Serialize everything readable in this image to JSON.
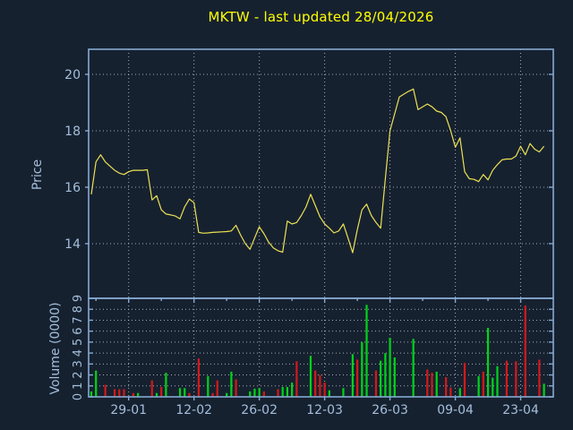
{
  "header": {
    "title": "MKTW - last updated 28/04/2026"
  },
  "colors": {
    "background": "#162130",
    "frame": "#86aad2",
    "tick_text": "#a4bfdc",
    "title_text": "#ffff00",
    "price_line": "#ece253",
    "grid": "#c8cdd2",
    "volume_up": "#00d419",
    "volume_down": "#d41919"
  },
  "chart_data": [
    {
      "type": "line",
      "title": "MKTW - last updated 28/04/2026",
      "xlabel": "",
      "ylabel": "Price",
      "legend_position": "none",
      "grid": true,
      "ylim": [
        12.05,
        20.9
      ],
      "yticks": [
        14,
        16,
        18,
        20
      ],
      "xtick_labels": [
        "29-01",
        "12-02",
        "26-02",
        "12-03",
        "26-03",
        "09-04",
        "23-04"
      ],
      "xtick_indices": [
        8,
        22,
        36,
        50,
        64,
        78,
        92
      ],
      "n_points": 98,
      "values": [
        15.75,
        16.9,
        17.15,
        16.9,
        16.75,
        16.6,
        16.5,
        16.45,
        16.55,
        16.6,
        16.6,
        16.6,
        16.62,
        15.55,
        15.7,
        15.2,
        15.05,
        15.02,
        14.98,
        14.88,
        15.3,
        15.58,
        15.45,
        14.4,
        14.37,
        14.38,
        14.4,
        14.41,
        14.42,
        14.43,
        14.45,
        14.65,
        14.3,
        14.0,
        13.8,
        14.2,
        14.6,
        14.35,
        14.05,
        13.85,
        13.75,
        13.7,
        14.8,
        14.7,
        14.75,
        15.0,
        15.3,
        15.75,
        15.35,
        14.95,
        14.7,
        14.55,
        14.38,
        14.45,
        14.7,
        14.2,
        13.68,
        14.5,
        15.2,
        15.4,
        15.0,
        14.75,
        14.55,
        16.3,
        18.0,
        18.6,
        19.2,
        19.3,
        19.4,
        19.48,
        18.75,
        18.85,
        18.95,
        18.85,
        18.7,
        18.65,
        18.5,
        18.0,
        17.42,
        17.75,
        16.55,
        16.3,
        16.28,
        16.2,
        16.45,
        16.26,
        16.6,
        16.8,
        16.97,
        17.0,
        17.0,
        17.1,
        17.45,
        17.15,
        17.55,
        17.35,
        17.25,
        17.45
      ]
    },
    {
      "type": "bar",
      "title": "",
      "xlabel": "",
      "ylabel": "Volume (0000)",
      "grid": true,
      "ylim": [
        0,
        9
      ],
      "yticks": [
        0,
        1,
        2,
        3,
        4,
        5,
        6,
        7,
        8,
        9
      ],
      "n_points": 98,
      "values": [
        0.5,
        2.4,
        0,
        1.1,
        0,
        0.7,
        0.7,
        0.7,
        0,
        0.35,
        0.35,
        0,
        0,
        1.5,
        0.35,
        0.9,
        2.2,
        0,
        0,
        0.8,
        0.8,
        0.35,
        0,
        3.5,
        0,
        1.9,
        0.35,
        1.5,
        0,
        0.35,
        2.3,
        1.6,
        0,
        0,
        0.5,
        0.75,
        0.8,
        0.5,
        0,
        0,
        0.7,
        0.9,
        0.9,
        1.3,
        3.25,
        0,
        0,
        3.75,
        2.4,
        2.0,
        1.3,
        0.6,
        0,
        0,
        0.8,
        0,
        3.9,
        3.4,
        5.0,
        8.4,
        0,
        2.4,
        3.3,
        4.0,
        5.4,
        3.6,
        0,
        0,
        0,
        5.3,
        0,
        0,
        2.5,
        2.2,
        2.3,
        0,
        1.8,
        0.85,
        0,
        0.8,
        3.1,
        0,
        0,
        1.9,
        2.3,
        6.3,
        1.75,
        2.8,
        0,
        3.3,
        0,
        3.25,
        0,
        8.35,
        0,
        0,
        3.4,
        1.2
      ],
      "bar_colors": [
        "g",
        "g",
        "",
        "r",
        "",
        "r",
        "r",
        "r",
        "",
        "r",
        "g",
        "",
        "",
        "r",
        "g",
        "r",
        "g",
        "",
        "",
        "g",
        "g",
        "r",
        "",
        "r",
        "",
        "g",
        "r",
        "r",
        "",
        "g",
        "g",
        "r",
        "",
        "",
        "g",
        "g",
        "g",
        "r",
        "",
        "",
        "r",
        "g",
        "g",
        "g",
        "r",
        "",
        "",
        "g",
        "r",
        "r",
        "r",
        "g",
        "",
        "",
        "g",
        "",
        "g",
        "r",
        "g",
        "g",
        "",
        "r",
        "g",
        "g",
        "g",
        "g",
        "",
        "",
        "",
        "g",
        "",
        "",
        "r",
        "r",
        "g",
        "",
        "r",
        "r",
        "",
        "g",
        "r",
        "",
        "",
        "g",
        "r",
        "g",
        "g",
        "g",
        "",
        "r",
        "",
        "r",
        "",
        "r",
        "",
        "",
        "r",
        "g"
      ]
    }
  ]
}
